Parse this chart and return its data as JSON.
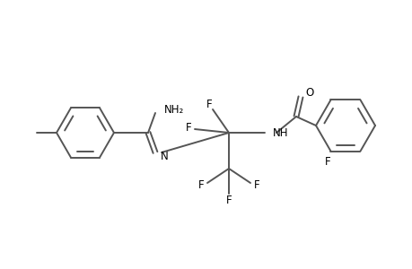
{
  "background": "#ffffff",
  "line_color": "#555555",
  "text_color": "#000000",
  "line_width": 1.4,
  "font_size": 8.5,
  "figsize": [
    4.6,
    3.0
  ],
  "dpi": 100,
  "xlim": [
    0,
    460
  ],
  "ylim": [
    0,
    300
  ]
}
